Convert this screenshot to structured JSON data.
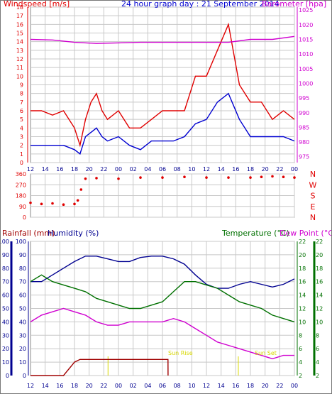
{
  "title": "24 hour graph day : 21 September 2014",
  "colors": {
    "red": "#e00000",
    "blue": "#0000d0",
    "magenta": "#d000d0",
    "green": "#007000",
    "dark_red": "#a00000",
    "axis_blue": "#000090",
    "grid": "#c8c8c8",
    "sun": "#d8d800"
  },
  "chart_data": [
    {
      "type": "line",
      "id": "wind-baro",
      "title": "24 hour graph day : 21 September 2014",
      "left_label": "Windspeed [m/s]",
      "right_label": "Barometer [hpa]",
      "x_ticks": [
        "12",
        "14",
        "16",
        "18",
        "20",
        "22",
        "00",
        "02",
        "04",
        "06",
        "08",
        "10",
        "12",
        "14",
        "16",
        "18",
        "20",
        "22",
        "00"
      ],
      "y_left_ticks": [
        "0",
        "1",
        "2",
        "3",
        "4",
        "5",
        "6",
        "7",
        "8",
        "9",
        "10",
        "11",
        "12",
        "13",
        "14",
        "15",
        "16",
        "17",
        "18"
      ],
      "y_right_ticks": [
        "975",
        "980",
        "985",
        "990",
        "995",
        "1000",
        "1005",
        "1010",
        "1015",
        "1020",
        "1025"
      ],
      "ylim_left": [
        0,
        18
      ],
      "ylim_right": [
        973,
        1026
      ],
      "grid": true,
      "series": [
        {
          "name": "Windspeed gust",
          "axis": "left",
          "x": [
            0,
            1,
            2,
            3,
            4,
            4.5,
            5,
            5.5,
            6,
            6.5,
            7,
            8,
            9,
            10,
            11,
            12,
            13,
            14,
            15,
            16,
            17,
            18,
            19,
            20,
            21,
            22,
            23,
            24
          ],
          "values": [
            6,
            6,
            5.5,
            6,
            4,
            2,
            5,
            7,
            8,
            6,
            5,
            6,
            4,
            4,
            5,
            6,
            6,
            6,
            10,
            10,
            13,
            16,
            9,
            7,
            7,
            5,
            6,
            5
          ]
        },
        {
          "name": "Windspeed average",
          "axis": "left",
          "x": [
            0,
            1,
            2,
            3,
            4,
            4.5,
            5,
            5.5,
            6,
            6.5,
            7,
            8,
            9,
            10,
            11,
            12,
            13,
            14,
            15,
            16,
            17,
            18,
            19,
            20,
            21,
            22,
            23,
            24
          ],
          "values": [
            2,
            2,
            2,
            2,
            1.5,
            1,
            3,
            3.5,
            4,
            3,
            2.5,
            3,
            2,
            1.5,
            2.5,
            2.5,
            2.5,
            3,
            4.5,
            5,
            7,
            8,
            5,
            3,
            3,
            3,
            3,
            2.5
          ]
        },
        {
          "name": "Barometer",
          "axis": "right",
          "x": [
            0,
            2,
            4,
            6,
            8,
            10,
            12,
            14,
            16,
            18,
            20,
            22,
            24
          ],
          "values": [
            1015,
            1014.8,
            1014,
            1013.6,
            1013.8,
            1014,
            1014,
            1014,
            1014,
            1014,
            1015,
            1015,
            1016
          ]
        }
      ]
    },
    {
      "type": "scatter",
      "id": "wind-direction",
      "left_ticks": [
        "360",
        "270",
        "180",
        "90",
        "0"
      ],
      "right_letters": [
        "N",
        "W",
        "S",
        "E",
        "N"
      ],
      "ylim": [
        0,
        360
      ],
      "grid": true,
      "series": [
        {
          "name": "Wind direction",
          "x": [
            0,
            1,
            2,
            3,
            4,
            4.3,
            4.6,
            5,
            6,
            8,
            10,
            12,
            14,
            16,
            18,
            20,
            21,
            22,
            23,
            24
          ],
          "values": [
            120,
            110,
            115,
            105,
            110,
            140,
            230,
            320,
            325,
            320,
            330,
            330,
            335,
            330,
            330,
            330,
            335,
            340,
            335,
            330
          ]
        }
      ]
    },
    {
      "type": "line",
      "id": "rain-hum-temp",
      "labels": {
        "rainfall": "Rainfall (mm)",
        "humidity": "Humidity (%)",
        "temperature": "Temperature (°C)",
        "dewpoint": "Dew Point (°C)"
      },
      "y_rain_ticks": [
        "0",
        "10",
        "20",
        "30",
        "40",
        "50",
        "60",
        "70",
        "80",
        "90",
        "100"
      ],
      "y_hum_ticks": [
        "0",
        "10",
        "20",
        "30",
        "40",
        "50",
        "60",
        "70",
        "80",
        "90",
        "100"
      ],
      "y_temp_ticks": [
        "2",
        "4",
        "6",
        "8",
        "10",
        "12",
        "14",
        "16",
        "18",
        "20",
        "22"
      ],
      "ylim_left": [
        0,
        100
      ],
      "ylim_right": [
        2,
        22
      ],
      "sun_rise_label": "Sun Rise",
      "sun_set_label": "Sun Set",
      "sun_rise_x": 18.9,
      "sun_set_x": 7.05,
      "grid": true,
      "series": [
        {
          "name": "Humidity",
          "axis": "left",
          "x": [
            0,
            1,
            2,
            3,
            4,
            5,
            6,
            7,
            8,
            9,
            10,
            11,
            12,
            13,
            14,
            15,
            16,
            17,
            18,
            19,
            20,
            21,
            22,
            23,
            24
          ],
          "values": [
            70,
            70,
            75,
            80,
            85,
            89,
            89,
            87,
            85,
            85,
            88,
            89,
            89,
            87,
            83,
            75,
            68,
            65,
            65,
            68,
            70,
            68,
            66,
            68,
            72
          ]
        },
        {
          "name": "Temperature",
          "axis": "right",
          "x": [
            0,
            1,
            2,
            3,
            4,
            5,
            6,
            7,
            8,
            9,
            10,
            11,
            12,
            13,
            14,
            15,
            16,
            17,
            18,
            19,
            20,
            21,
            22,
            23,
            24
          ],
          "values": [
            16,
            17,
            16,
            15.5,
            15,
            14.5,
            13.5,
            13,
            12.5,
            12,
            12,
            12.5,
            13,
            14.5,
            16,
            16,
            15.5,
            15,
            14,
            13,
            12.5,
            12,
            11,
            10.5,
            10
          ]
        },
        {
          "name": "Dew point",
          "axis": "right",
          "x": [
            0,
            1,
            2,
            3,
            4,
            5,
            6,
            7,
            8,
            9,
            10,
            11,
            12,
            13,
            14,
            15,
            16,
            17,
            18,
            19,
            20,
            21,
            22,
            23,
            24
          ],
          "values": [
            10,
            11,
            11.5,
            12,
            11.5,
            11,
            10,
            9.5,
            9.5,
            10,
            10,
            10,
            10,
            10.5,
            10,
            9,
            8,
            7,
            6.5,
            6,
            5.5,
            5,
            4.5,
            5,
            5
          ]
        },
        {
          "name": "Rainfall",
          "axis": "left",
          "x": [
            0,
            1,
            2,
            3,
            3.2,
            3.5,
            3.8,
            4,
            4.5,
            5,
            6,
            7,
            8,
            9,
            10,
            11,
            12.5,
            12.51
          ],
          "values": [
            0,
            0,
            0,
            0,
            2,
            5,
            8,
            10,
            12,
            12,
            12,
            12,
            12,
            12,
            12,
            12,
            12,
            0
          ]
        }
      ]
    }
  ]
}
